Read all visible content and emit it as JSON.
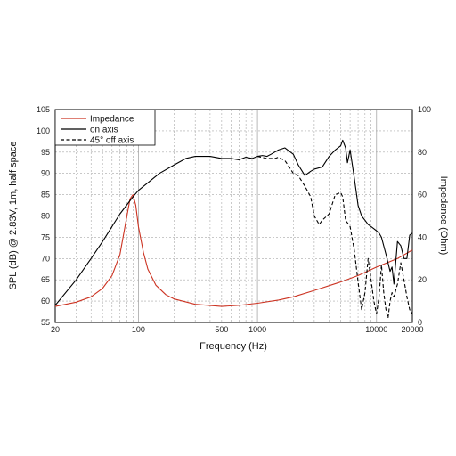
{
  "chart_data": {
    "type": "line",
    "xlabel": "Frequency (Hz)",
    "ylabel_left": "SPL (dB) @ 2.83V, 1m, half space",
    "ylabel_right": "Impedance (Ohm)",
    "x_scale": "log",
    "xlim": [
      20,
      20000
    ],
    "ylim_left": [
      55,
      105
    ],
    "ylim_right": [
      0,
      100
    ],
    "grid": true,
    "legend_position": "top-left",
    "x_tick_labels": [
      "20",
      "100",
      "500",
      "1000",
      "10000",
      "20000"
    ],
    "x_tick_values": [
      20,
      100,
      500,
      1000,
      10000,
      20000
    ],
    "y_left_ticks": [
      55,
      60,
      65,
      70,
      75,
      80,
      85,
      90,
      95,
      100,
      105
    ],
    "y_right_ticks": [
      0,
      20,
      40,
      60,
      80,
      100
    ],
    "colors": {
      "impedance": "#cc3322",
      "on_axis": "#000000",
      "off_axis": "#000000",
      "grid": "#a8a8a8"
    },
    "series": [
      {
        "name": "Impedance",
        "axis": "right",
        "style": "solid",
        "x": [
          20,
          30,
          40,
          50,
          60,
          70,
          80,
          85,
          90,
          95,
          100,
          110,
          120,
          140,
          170,
          200,
          300,
          500,
          700,
          1000,
          1500,
          2000,
          3000,
          5000,
          7000,
          10000,
          15000,
          20000
        ],
        "y": [
          7.5,
          9.5,
          12,
          16,
          22,
          32,
          50,
          58,
          60,
          55,
          45,
          33,
          25,
          17.5,
          13,
          11,
          8.5,
          7.5,
          8,
          9,
          10.5,
          12,
          15,
          19,
          22,
          26,
          30,
          34
        ]
      },
      {
        "name": "on axis",
        "axis": "left",
        "style": "solid",
        "x": [
          20,
          30,
          40,
          50,
          70,
          90,
          100,
          150,
          200,
          250,
          300,
          400,
          500,
          600,
          700,
          800,
          900,
          1000,
          1100,
          1200,
          1300,
          1500,
          1700,
          2000,
          2200,
          2500,
          2800,
          3000,
          3500,
          4000,
          4500,
          5000,
          5200,
          5500,
          5700,
          6000,
          6500,
          7000,
          7500,
          8000,
          8500,
          9000,
          9500,
          10000,
          10500,
          11000,
          12000,
          13000,
          13500,
          14000,
          15000,
          16000,
          17000,
          18000,
          19000,
          20000
        ],
        "y": [
          59,
          65,
          70,
          74,
          80.5,
          84.5,
          86,
          90,
          92,
          93.5,
          94,
          94,
          93.5,
          93.5,
          93.2,
          93.8,
          93.5,
          94,
          94.2,
          94,
          94.5,
          95.5,
          96,
          94.5,
          92,
          89.5,
          90.5,
          91,
          91.5,
          94,
          95.5,
          96.5,
          97.8,
          96,
          92.5,
          95.5,
          89,
          82.5,
          80,
          79,
          78,
          77.5,
          77,
          76.5,
          76,
          75,
          71,
          67,
          68,
          64,
          74,
          73,
          70,
          70,
          75.5,
          76
        ]
      },
      {
        "name": "45° off axis",
        "axis": "left",
        "style": "dashed",
        "x": [
          1000,
          1200,
          1400,
          1500,
          1700,
          1800,
          2000,
          2200,
          2500,
          2800,
          3000,
          3300,
          3500,
          4000,
          4500,
          5000,
          5200,
          5500,
          6000,
          6500,
          7000,
          7500,
          8000,
          8500,
          9000,
          9500,
          10000,
          10500,
          11000,
          11500,
          12000,
          12500,
          13000,
          13500,
          14000,
          15000,
          16000,
          17000,
          18000,
          19000,
          20000
        ],
        "y": [
          94,
          93.5,
          93.5,
          93.8,
          93,
          92,
          90,
          89.5,
          87,
          84.5,
          80,
          78,
          79,
          80.5,
          85,
          85.5,
          84.5,
          79,
          77.5,
          72,
          64.5,
          58,
          62,
          70,
          65,
          60,
          57,
          61,
          68.5,
          62,
          58,
          56,
          60,
          62,
          61,
          64,
          69,
          65,
          61,
          58,
          57
        ]
      }
    ]
  }
}
